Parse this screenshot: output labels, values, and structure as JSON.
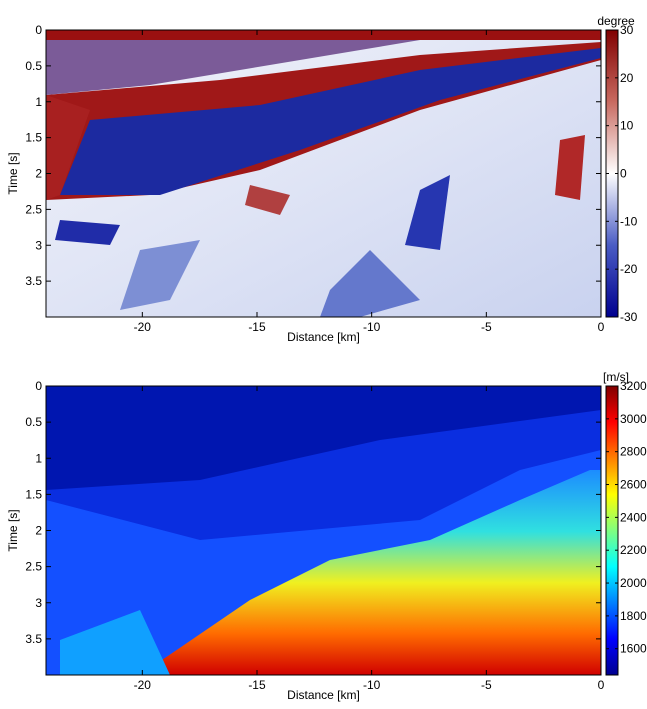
{
  "chart_data": [
    {
      "type": "heatmap",
      "xlabel": "Distance [km]",
      "ylabel": "Time [s]",
      "xlim": [
        -24.2,
        0
      ],
      "xticks": [
        -20,
        -15,
        -10,
        -5,
        0
      ],
      "ylim": [
        0,
        4
      ],
      "y_reversed": true,
      "yticks": [
        0,
        0.5,
        1,
        1.5,
        2,
        2.5,
        3,
        3.5
      ],
      "colorbar_label": "degree",
      "clim": [
        -30,
        30
      ],
      "cticks": [
        -30,
        -20,
        -10,
        0,
        10,
        20,
        30
      ],
      "colormap": [
        "#00008f",
        "#4a5cc4",
        "#ffffff",
        "#c86a60",
        "#800000"
      ]
    },
    {
      "type": "heatmap",
      "xlabel": "Distance [km]",
      "ylabel": "Time [s]",
      "xlim": [
        -24.2,
        0
      ],
      "xticks": [
        -20,
        -15,
        -10,
        -5,
        0
      ],
      "ylim": [
        0,
        4
      ],
      "y_reversed": true,
      "yticks": [
        0,
        0.5,
        1,
        1.5,
        2,
        2.5,
        3,
        3.5
      ],
      "colorbar_label": "[m/s]",
      "clim": [
        1440,
        3200
      ],
      "cticks": [
        1600,
        1800,
        2000,
        2200,
        2400,
        2600,
        2800,
        3000,
        3200
      ],
      "colormap": [
        "#00008f",
        "#0000ff",
        "#0080ff",
        "#00ffff",
        "#80ff80",
        "#ffff00",
        "#ff8000",
        "#ff0000",
        "#800000"
      ]
    }
  ]
}
